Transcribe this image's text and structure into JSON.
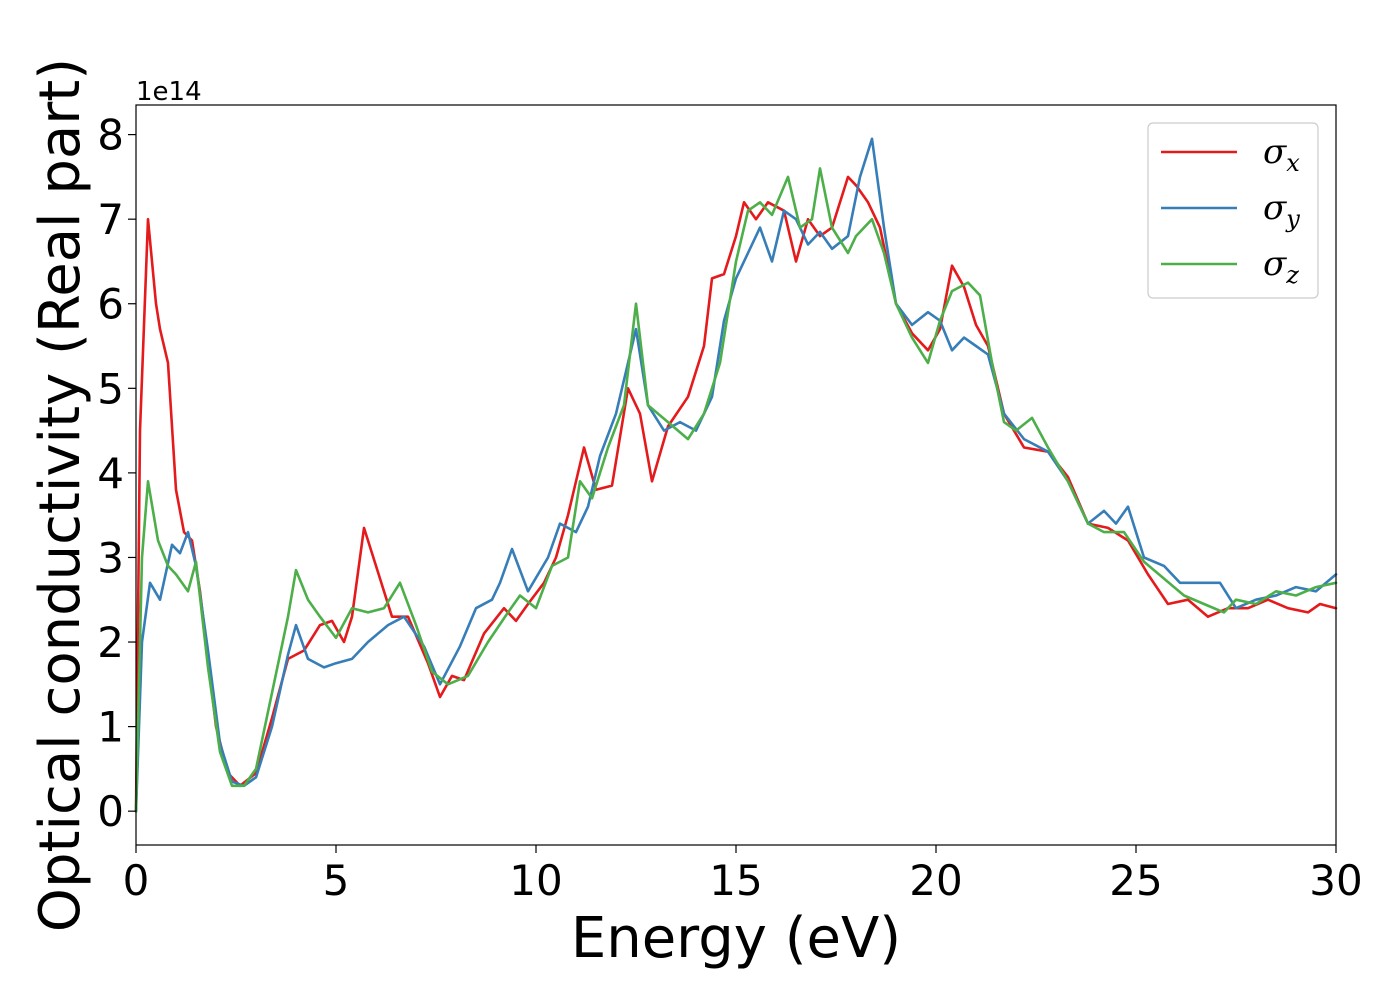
{
  "chart_data": {
    "type": "line",
    "xlabel": "Energy (eV)",
    "ylabel": "Optical conductivity (Real part)",
    "y_offset_label": "1e14",
    "xlim": [
      0,
      30
    ],
    "ylim": [
      -0.4,
      8.35
    ],
    "x_ticks": [
      0,
      5,
      10,
      15,
      20,
      25,
      30
    ],
    "y_ticks": [
      0,
      1,
      2,
      3,
      4,
      5,
      6,
      7,
      8
    ],
    "grid": false,
    "legend_position": "top-right",
    "series": [
      {
        "name": "σx",
        "symbol": "σ",
        "subscript": "x",
        "color": "#e41a1c",
        "points": [
          [
            0,
            0
          ],
          [
            0.1,
            4.5
          ],
          [
            0.3,
            7.0
          ],
          [
            0.5,
            6.0
          ],
          [
            0.6,
            5.7
          ],
          [
            0.8,
            5.3
          ],
          [
            1.0,
            3.8
          ],
          [
            1.2,
            3.3
          ],
          [
            1.4,
            3.2
          ],
          [
            1.6,
            2.6
          ],
          [
            2.0,
            1.0
          ],
          [
            2.3,
            0.45
          ],
          [
            2.6,
            0.3
          ],
          [
            3.0,
            0.45
          ],
          [
            3.4,
            1.1
          ],
          [
            3.8,
            1.8
          ],
          [
            4.2,
            1.9
          ],
          [
            4.6,
            2.2
          ],
          [
            4.9,
            2.25
          ],
          [
            5.2,
            2.0
          ],
          [
            5.4,
            2.3
          ],
          [
            5.7,
            3.35
          ],
          [
            6.0,
            2.9
          ],
          [
            6.4,
            2.3
          ],
          [
            6.8,
            2.3
          ],
          [
            7.3,
            1.75
          ],
          [
            7.6,
            1.35
          ],
          [
            7.9,
            1.6
          ],
          [
            8.2,
            1.55
          ],
          [
            8.7,
            2.1
          ],
          [
            9.2,
            2.4
          ],
          [
            9.5,
            2.25
          ],
          [
            9.8,
            2.45
          ],
          [
            10.2,
            2.7
          ],
          [
            10.5,
            3.0
          ],
          [
            10.8,
            3.5
          ],
          [
            11.2,
            4.3
          ],
          [
            11.5,
            3.8
          ],
          [
            11.9,
            3.85
          ],
          [
            12.3,
            5.0
          ],
          [
            12.6,
            4.7
          ],
          [
            12.9,
            3.9
          ],
          [
            13.3,
            4.55
          ],
          [
            13.8,
            4.9
          ],
          [
            14.2,
            5.5
          ],
          [
            14.4,
            6.3
          ],
          [
            14.7,
            6.35
          ],
          [
            15.0,
            6.8
          ],
          [
            15.2,
            7.2
          ],
          [
            15.5,
            7.0
          ],
          [
            15.8,
            7.2
          ],
          [
            16.2,
            7.1
          ],
          [
            16.5,
            6.5
          ],
          [
            16.8,
            7.0
          ],
          [
            17.1,
            6.8
          ],
          [
            17.4,
            6.9
          ],
          [
            17.8,
            7.5
          ],
          [
            18.0,
            7.4
          ],
          [
            18.3,
            7.2
          ],
          [
            18.6,
            6.9
          ],
          [
            19.0,
            6.0
          ],
          [
            19.4,
            5.65
          ],
          [
            19.8,
            5.45
          ],
          [
            20.1,
            5.7
          ],
          [
            20.4,
            6.45
          ],
          [
            20.7,
            6.2
          ],
          [
            21.0,
            5.75
          ],
          [
            21.3,
            5.5
          ],
          [
            21.7,
            4.7
          ],
          [
            22.2,
            4.3
          ],
          [
            22.8,
            4.25
          ],
          [
            23.3,
            3.95
          ],
          [
            23.8,
            3.4
          ],
          [
            24.3,
            3.35
          ],
          [
            24.8,
            3.2
          ],
          [
            25.3,
            2.8
          ],
          [
            25.8,
            2.45
          ],
          [
            26.3,
            2.5
          ],
          [
            26.8,
            2.3
          ],
          [
            27.3,
            2.4
          ],
          [
            27.8,
            2.4
          ],
          [
            28.3,
            2.5
          ],
          [
            28.8,
            2.4
          ],
          [
            29.3,
            2.35
          ],
          [
            29.6,
            2.45
          ],
          [
            30.0,
            2.4
          ]
        ]
      },
      {
        "name": "σy",
        "symbol": "σ",
        "subscript": "y",
        "color": "#377eb8",
        "points": [
          [
            0,
            0
          ],
          [
            0.15,
            2.0
          ],
          [
            0.35,
            2.7
          ],
          [
            0.6,
            2.5
          ],
          [
            0.9,
            3.15
          ],
          [
            1.1,
            3.05
          ],
          [
            1.3,
            3.3
          ],
          [
            1.5,
            2.9
          ],
          [
            1.8,
            1.9
          ],
          [
            2.1,
            0.8
          ],
          [
            2.4,
            0.35
          ],
          [
            2.7,
            0.3
          ],
          [
            3.0,
            0.4
          ],
          [
            3.4,
            1.0
          ],
          [
            3.8,
            1.85
          ],
          [
            4.0,
            2.2
          ],
          [
            4.3,
            1.8
          ],
          [
            4.7,
            1.7
          ],
          [
            5.0,
            1.75
          ],
          [
            5.4,
            1.8
          ],
          [
            5.8,
            2.0
          ],
          [
            6.3,
            2.2
          ],
          [
            6.7,
            2.3
          ],
          [
            7.2,
            1.95
          ],
          [
            7.6,
            1.5
          ],
          [
            8.1,
            1.95
          ],
          [
            8.5,
            2.4
          ],
          [
            8.9,
            2.5
          ],
          [
            9.1,
            2.7
          ],
          [
            9.4,
            3.1
          ],
          [
            9.8,
            2.6
          ],
          [
            10.3,
            3.0
          ],
          [
            10.6,
            3.4
          ],
          [
            11.0,
            3.3
          ],
          [
            11.3,
            3.6
          ],
          [
            11.6,
            4.2
          ],
          [
            12.0,
            4.7
          ],
          [
            12.2,
            5.1
          ],
          [
            12.5,
            5.7
          ],
          [
            12.8,
            4.8
          ],
          [
            13.2,
            4.5
          ],
          [
            13.6,
            4.6
          ],
          [
            14.0,
            4.5
          ],
          [
            14.4,
            4.9
          ],
          [
            14.7,
            5.8
          ],
          [
            15.0,
            6.3
          ],
          [
            15.3,
            6.6
          ],
          [
            15.6,
            6.9
          ],
          [
            15.9,
            6.5
          ],
          [
            16.2,
            7.1
          ],
          [
            16.5,
            7.0
          ],
          [
            16.8,
            6.7
          ],
          [
            17.1,
            6.85
          ],
          [
            17.4,
            6.65
          ],
          [
            17.8,
            6.8
          ],
          [
            18.1,
            7.5
          ],
          [
            18.4,
            7.95
          ],
          [
            18.7,
            6.9
          ],
          [
            19.0,
            6.0
          ],
          [
            19.4,
            5.75
          ],
          [
            19.8,
            5.9
          ],
          [
            20.1,
            5.8
          ],
          [
            20.4,
            5.45
          ],
          [
            20.7,
            5.6
          ],
          [
            21.0,
            5.5
          ],
          [
            21.3,
            5.4
          ],
          [
            21.7,
            4.7
          ],
          [
            22.2,
            4.4
          ],
          [
            22.8,
            4.25
          ],
          [
            23.3,
            3.9
          ],
          [
            23.8,
            3.4
          ],
          [
            24.2,
            3.55
          ],
          [
            24.5,
            3.4
          ],
          [
            24.8,
            3.6
          ],
          [
            25.2,
            3.0
          ],
          [
            25.7,
            2.9
          ],
          [
            26.1,
            2.7
          ],
          [
            26.6,
            2.7
          ],
          [
            27.1,
            2.7
          ],
          [
            27.5,
            2.4
          ],
          [
            28.0,
            2.5
          ],
          [
            28.5,
            2.55
          ],
          [
            29.0,
            2.65
          ],
          [
            29.5,
            2.6
          ],
          [
            30.0,
            2.8
          ]
        ]
      },
      {
        "name": "σz",
        "symbol": "σ",
        "subscript": "z",
        "color": "#4daf4a",
        "points": [
          [
            0,
            0
          ],
          [
            0.15,
            3.0
          ],
          [
            0.3,
            3.9
          ],
          [
            0.55,
            3.2
          ],
          [
            0.8,
            2.9
          ],
          [
            1.0,
            2.8
          ],
          [
            1.3,
            2.6
          ],
          [
            1.5,
            2.95
          ],
          [
            1.8,
            1.7
          ],
          [
            2.1,
            0.7
          ],
          [
            2.4,
            0.3
          ],
          [
            2.7,
            0.3
          ],
          [
            3.0,
            0.5
          ],
          [
            3.4,
            1.4
          ],
          [
            3.8,
            2.3
          ],
          [
            4.0,
            2.85
          ],
          [
            4.3,
            2.5
          ],
          [
            4.6,
            2.3
          ],
          [
            5.0,
            2.05
          ],
          [
            5.4,
            2.4
          ],
          [
            5.8,
            2.35
          ],
          [
            6.2,
            2.4
          ],
          [
            6.6,
            2.7
          ],
          [
            7.0,
            2.2
          ],
          [
            7.4,
            1.65
          ],
          [
            7.8,
            1.5
          ],
          [
            8.3,
            1.6
          ],
          [
            8.8,
            2.0
          ],
          [
            9.3,
            2.35
          ],
          [
            9.6,
            2.55
          ],
          [
            10.0,
            2.4
          ],
          [
            10.4,
            2.9
          ],
          [
            10.8,
            3.0
          ],
          [
            11.1,
            3.9
          ],
          [
            11.4,
            3.7
          ],
          [
            11.8,
            4.3
          ],
          [
            12.2,
            4.8
          ],
          [
            12.5,
            6.0
          ],
          [
            12.8,
            4.8
          ],
          [
            13.3,
            4.6
          ],
          [
            13.8,
            4.4
          ],
          [
            14.2,
            4.7
          ],
          [
            14.6,
            5.3
          ],
          [
            15.0,
            6.5
          ],
          [
            15.3,
            7.1
          ],
          [
            15.6,
            7.2
          ],
          [
            15.9,
            7.05
          ],
          [
            16.3,
            7.5
          ],
          [
            16.6,
            6.9
          ],
          [
            16.9,
            7.0
          ],
          [
            17.1,
            7.6
          ],
          [
            17.4,
            6.9
          ],
          [
            17.8,
            6.6
          ],
          [
            18.0,
            6.8
          ],
          [
            18.4,
            7.0
          ],
          [
            18.7,
            6.6
          ],
          [
            19.0,
            6.0
          ],
          [
            19.4,
            5.6
          ],
          [
            19.8,
            5.3
          ],
          [
            20.1,
            5.8
          ],
          [
            20.4,
            6.15
          ],
          [
            20.8,
            6.25
          ],
          [
            21.1,
            6.1
          ],
          [
            21.4,
            5.3
          ],
          [
            21.7,
            4.6
          ],
          [
            22.0,
            4.5
          ],
          [
            22.4,
            4.65
          ],
          [
            22.8,
            4.3
          ],
          [
            23.3,
            3.9
          ],
          [
            23.8,
            3.4
          ],
          [
            24.2,
            3.3
          ],
          [
            24.7,
            3.3
          ],
          [
            25.2,
            2.95
          ],
          [
            25.7,
            2.75
          ],
          [
            26.2,
            2.55
          ],
          [
            26.7,
            2.45
          ],
          [
            27.2,
            2.35
          ],
          [
            27.5,
            2.5
          ],
          [
            28.0,
            2.45
          ],
          [
            28.5,
            2.6
          ],
          [
            29.0,
            2.55
          ],
          [
            29.5,
            2.65
          ],
          [
            30.0,
            2.7
          ]
        ]
      }
    ]
  }
}
